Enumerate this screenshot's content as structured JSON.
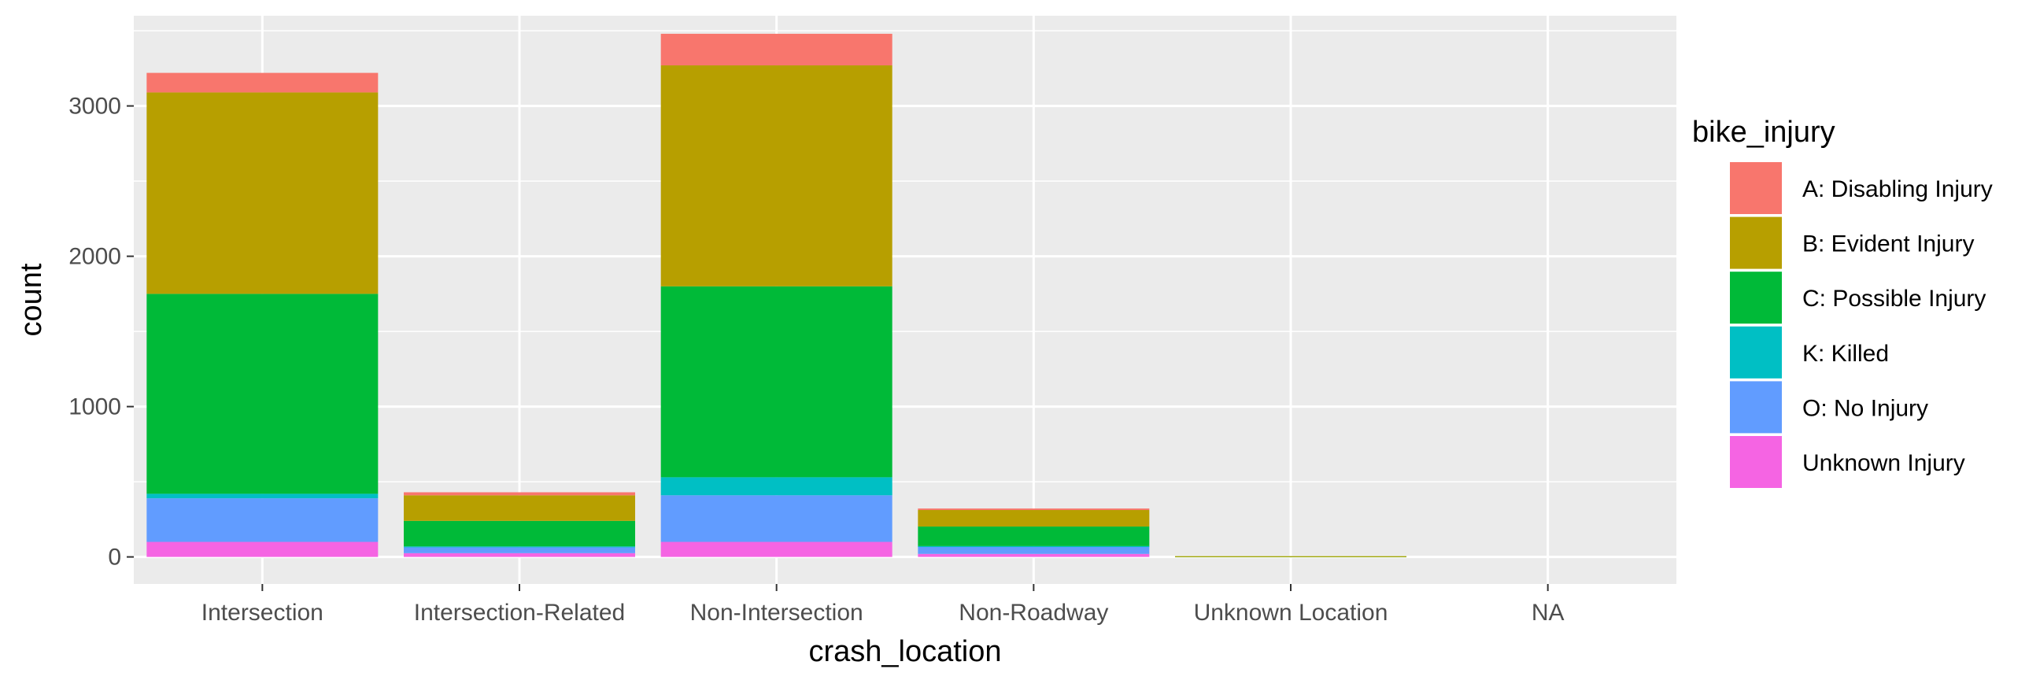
{
  "chart_data": {
    "type": "bar",
    "stacked": true,
    "xlabel": "crash_location",
    "ylabel": "count",
    "ylim": [
      -180,
      3600
    ],
    "y_ticks": [
      0,
      1000,
      2000,
      3000
    ],
    "y_tick_labels": [
      "0",
      "1000",
      "2000",
      "3000"
    ],
    "categories": [
      "Intersection",
      "Intersection-Related",
      "Non-Intersection",
      "Non-Roadway",
      "Unknown Location",
      "NA"
    ],
    "legend_title": "bike_injury",
    "legend_position": "right",
    "series": [
      {
        "name": "A: Disabling Injury",
        "color": "#F8766D",
        "values": [
          130,
          20,
          210,
          10,
          0,
          0
        ]
      },
      {
        "name": "B: Evident Injury",
        "color": "#B79F00",
        "values": [
          1340,
          170,
          1470,
          110,
          1,
          0
        ]
      },
      {
        "name": "C: Possible Injury",
        "color": "#00BA38",
        "values": [
          1330,
          170,
          1270,
          130,
          4,
          0
        ]
      },
      {
        "name": "K: Killed",
        "color": "#00BFC4",
        "values": [
          30,
          5,
          120,
          2,
          0,
          0
        ]
      },
      {
        "name": "O: No Injury",
        "color": "#619CFF",
        "values": [
          290,
          40,
          310,
          50,
          0,
          0
        ]
      },
      {
        "name": "Unknown Injury",
        "color": "#F564E3",
        "values": [
          100,
          25,
          100,
          20,
          0,
          0
        ]
      }
    ]
  }
}
